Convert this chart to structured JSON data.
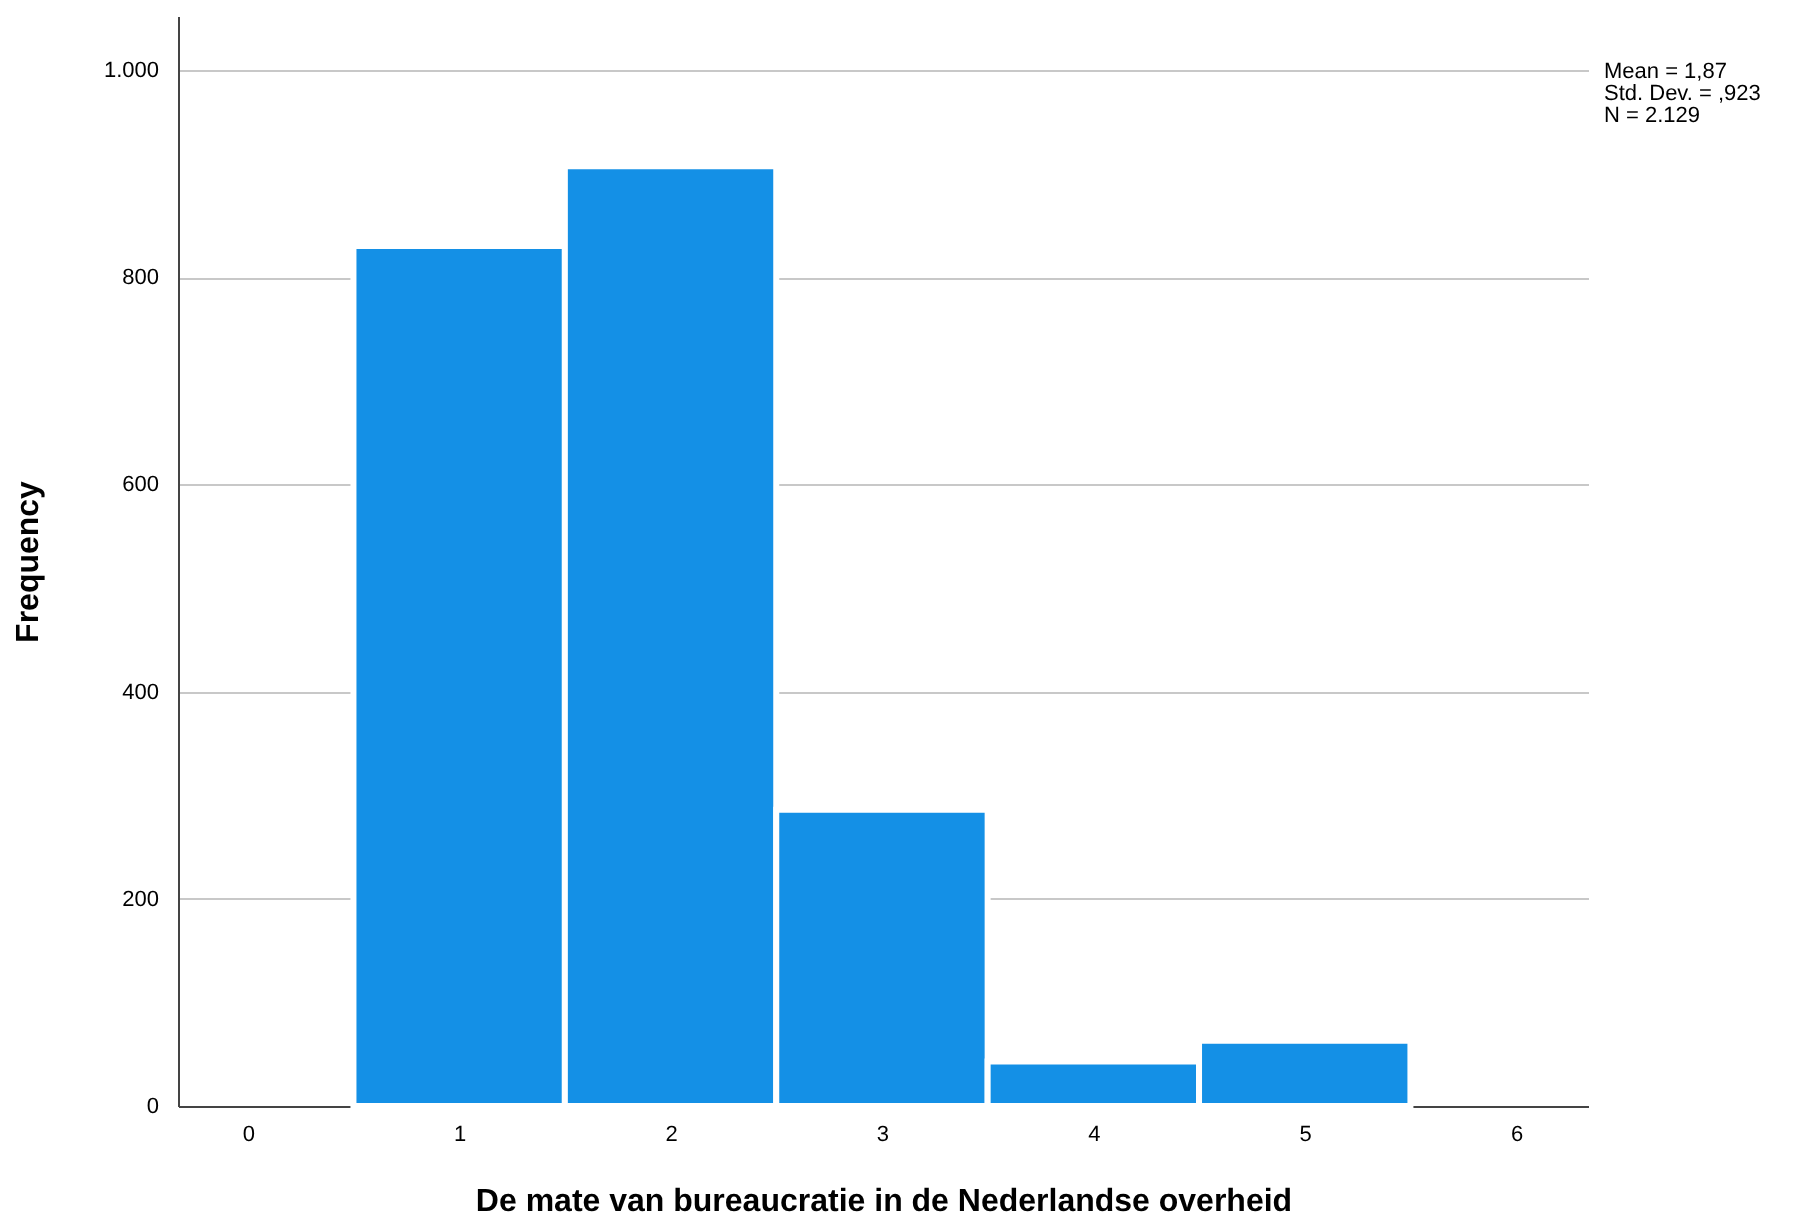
{
  "chart_data": {
    "type": "histogram",
    "xlabel": "De mate van bureaucratie in de Nederlandse overheid",
    "ylabel": "Frequency",
    "bins": [
      0.5,
      1.5,
      2.5,
      3.5,
      4.5,
      5.5
    ],
    "values": [
      830,
      907,
      286,
      43,
      63
    ],
    "color": "#1490e6",
    "xlim": [
      -0.33,
      6.34
    ],
    "xticks": [
      0,
      1,
      2,
      3,
      4,
      5,
      6
    ],
    "ylim": [
      0,
      1052
    ],
    "yticks": [
      0,
      200,
      400,
      600,
      800,
      {
        "value": 1000,
        "label": "1.000"
      }
    ],
    "grid": "y",
    "annotations": [
      "Mean = 1,87",
      "Std. Dev. = ,923",
      "N = 2.129"
    ]
  }
}
